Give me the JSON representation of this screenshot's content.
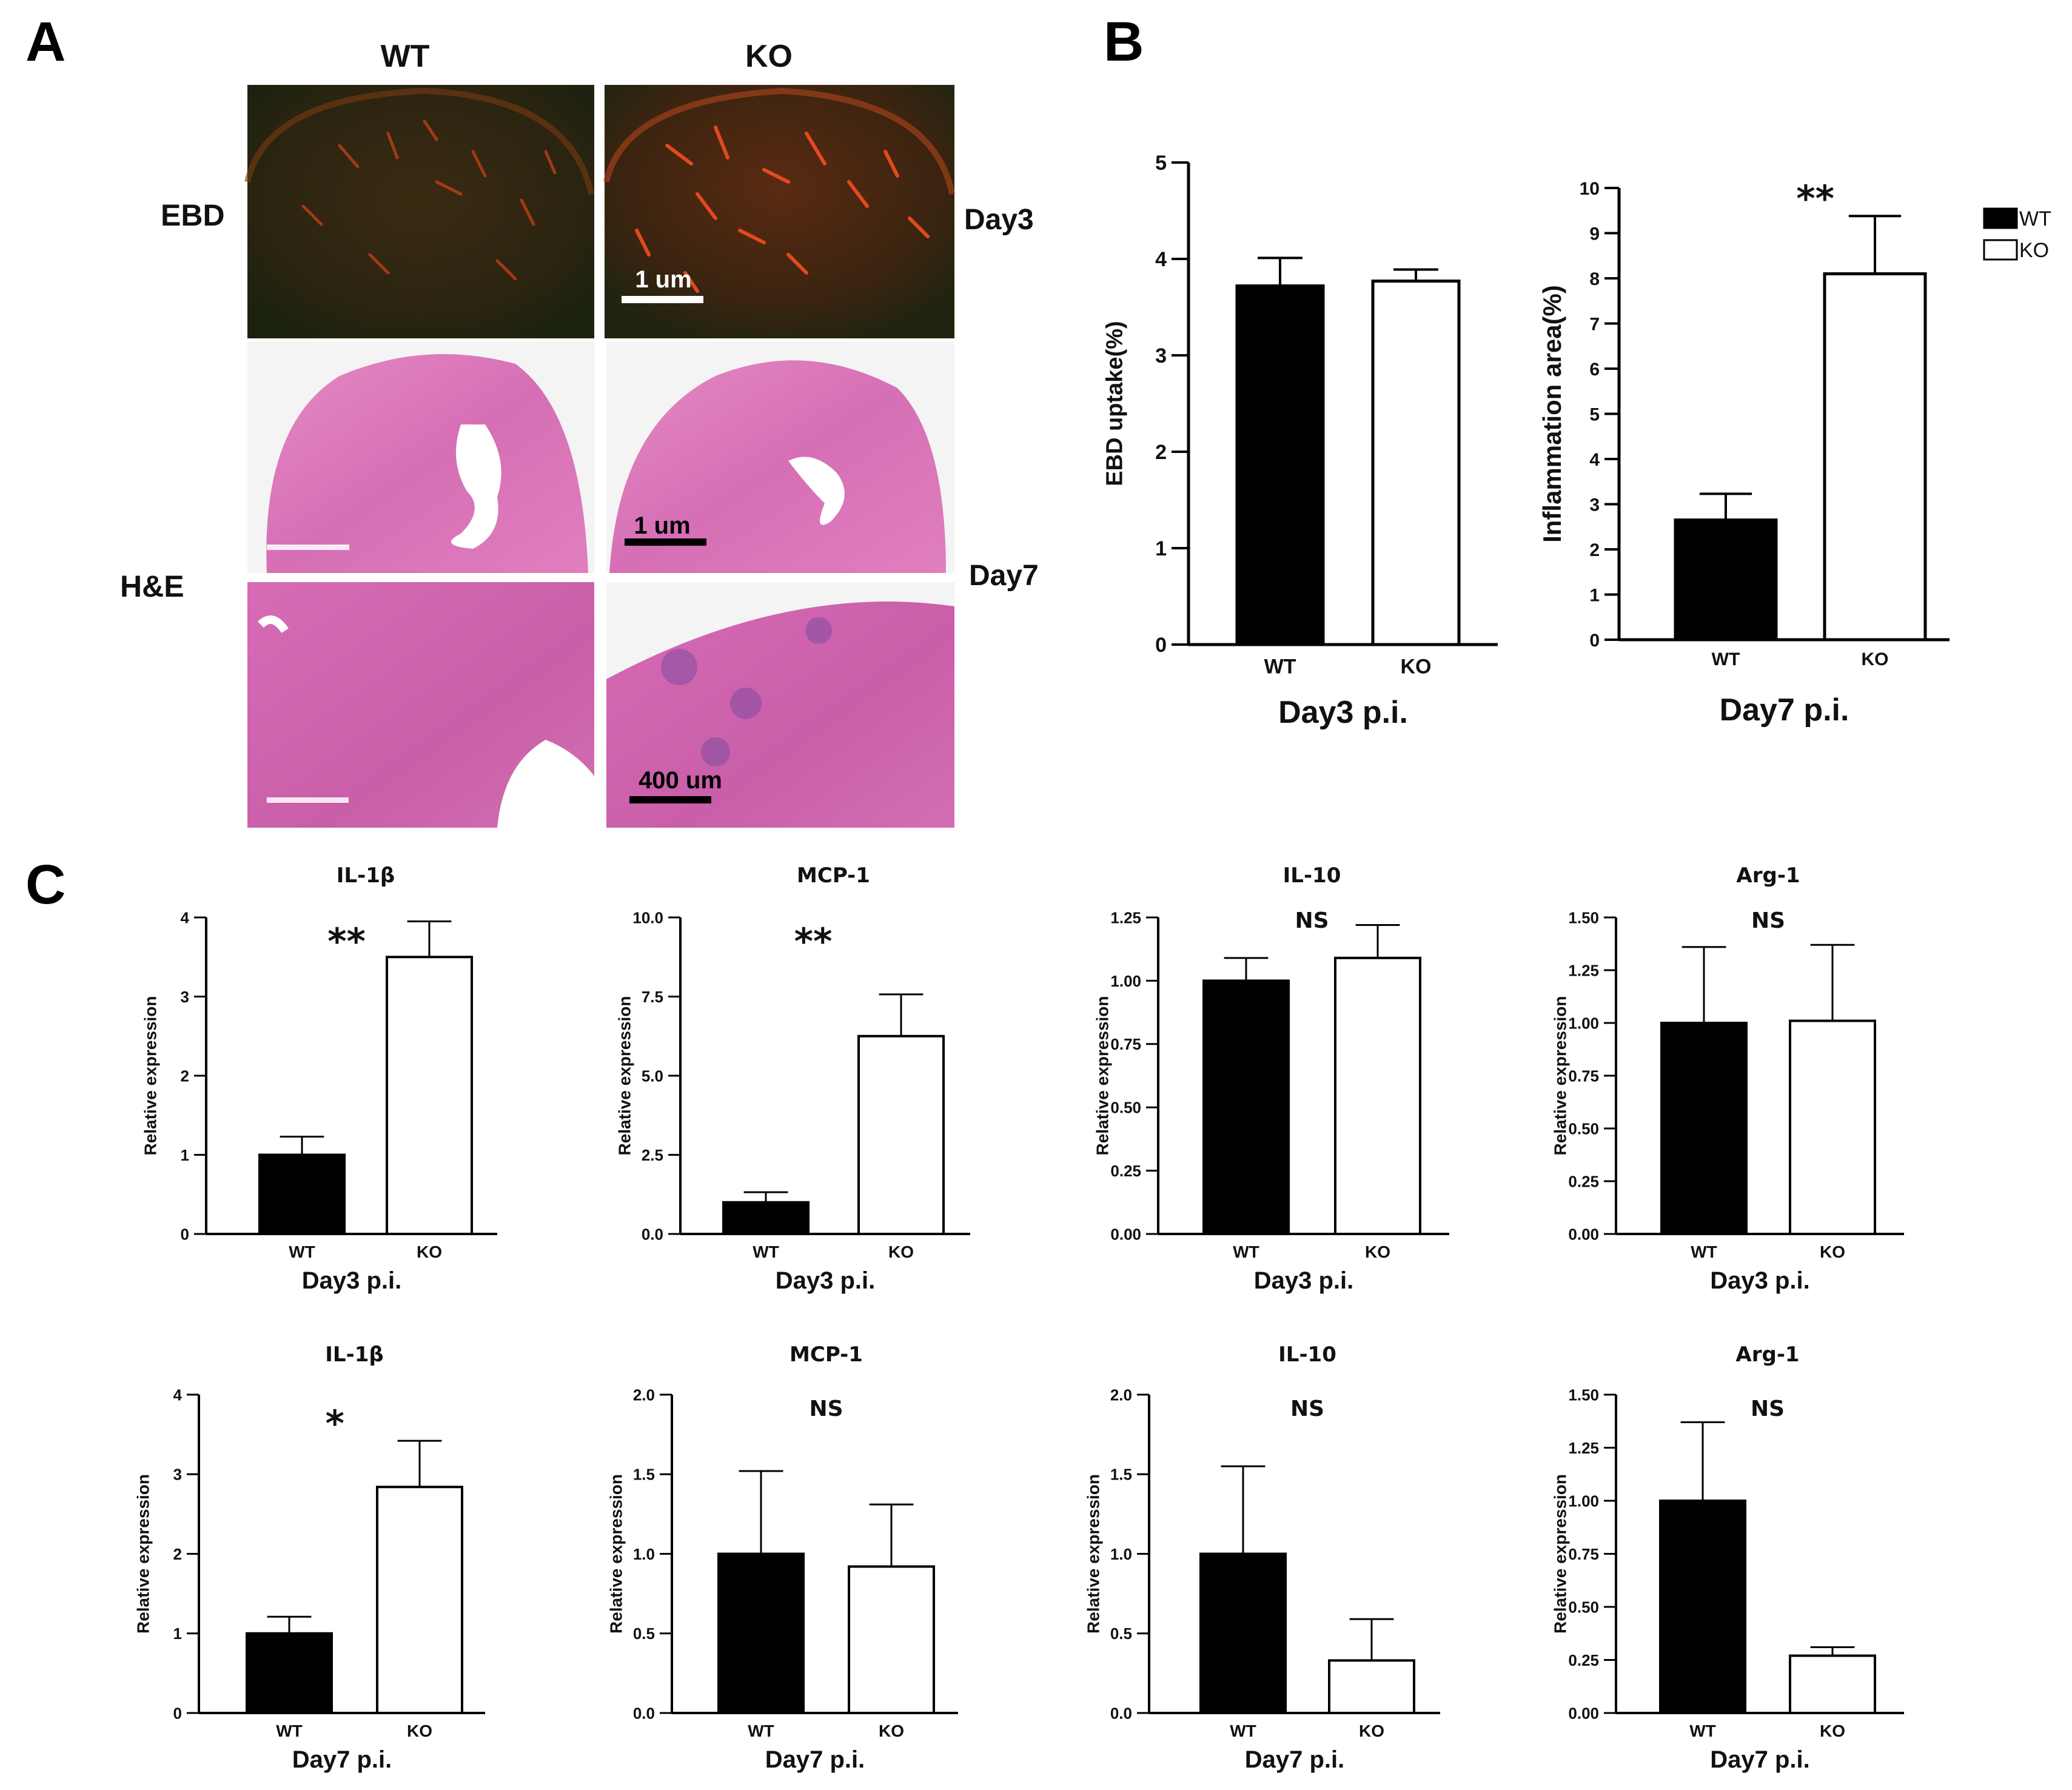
{
  "panels": {
    "a": "A",
    "b": "B",
    "c": "C"
  },
  "panel_a": {
    "col_wt": "WT",
    "col_ko": "KO",
    "row_ebd": "EBD",
    "row_he": "H&E",
    "day3": "Day3",
    "day7": "Day7",
    "scalebar_ebd": "1 um",
    "scalebar_he1": "1 um",
    "scalebar_he2": "400 um"
  },
  "legend": {
    "wt": "WT",
    "ko": "KO",
    "wt_color": "#000000",
    "ko_color": "#ffffff"
  },
  "colors": {
    "wt": "#000000",
    "ko": "#ffffff",
    "stroke": "#000000"
  },
  "chart_data": [
    {
      "id": "b1",
      "type": "bar",
      "title": "",
      "xlabel": "Day3 p.i.",
      "ylabel": "EBD uptake(%)",
      "categories": [
        "WT",
        "KO"
      ],
      "values": [
        3.72,
        3.77
      ],
      "errors": [
        0.29,
        0.12
      ],
      "ylim": [
        0,
        5
      ],
      "ticks": [
        "0",
        "1",
        "2",
        "3",
        "4",
        "5"
      ],
      "sig": ""
    },
    {
      "id": "b2",
      "type": "bar",
      "title": "",
      "xlabel": "Day7 p.i.",
      "ylabel": "Inflammation area(%)",
      "categories": [
        "WT",
        "KO"
      ],
      "values": [
        2.65,
        8.1
      ],
      "errors": [
        0.58,
        1.28
      ],
      "ylim": [
        0,
        10
      ],
      "ticks": [
        "0",
        "1",
        "2",
        "3",
        "4",
        "5",
        "6",
        "7",
        "8",
        "9",
        "10"
      ],
      "sig": "**"
    },
    {
      "id": "c1",
      "type": "bar",
      "title": "IL-1β",
      "xlabel": "Day3 p.i.",
      "ylabel": "Relative expression",
      "categories": [
        "WT",
        "KO"
      ],
      "values": [
        1.0,
        3.5
      ],
      "errors": [
        0.23,
        0.45
      ],
      "ylim": [
        0,
        4
      ],
      "ticks": [
        "0",
        "1",
        "2",
        "3",
        "4"
      ],
      "sig": "**"
    },
    {
      "id": "c2",
      "type": "bar",
      "title": "MCP-1",
      "xlabel": "Day3 p.i.",
      "ylabel": "Relative expression",
      "categories": [
        "WT",
        "KO"
      ],
      "values": [
        1.0,
        6.25
      ],
      "errors": [
        0.32,
        1.32
      ],
      "ylim": [
        0,
        10
      ],
      "ticks": [
        "0.0",
        "2.5",
        "5.0",
        "7.5",
        "10.0"
      ],
      "sig": "**"
    },
    {
      "id": "c3",
      "type": "bar",
      "title": "IL-10",
      "xlabel": "Day3 p.i.",
      "ylabel": "Relative expression",
      "categories": [
        "WT",
        "KO"
      ],
      "values": [
        1.0,
        1.09
      ],
      "errors": [
        0.09,
        0.13
      ],
      "ylim": [
        0,
        1.25
      ],
      "ticks": [
        "0.00",
        "0.25",
        "0.50",
        "0.75",
        "1.00",
        "1.25"
      ],
      "sig": "NS"
    },
    {
      "id": "c4",
      "type": "bar",
      "title": "Arg-1",
      "xlabel": "Day3 p.i.",
      "ylabel": "Relative expression",
      "categories": [
        "WT",
        "KO"
      ],
      "values": [
        1.0,
        1.01
      ],
      "errors": [
        0.36,
        0.36
      ],
      "ylim": [
        0,
        1.5
      ],
      "ticks": [
        "0.00",
        "0.25",
        "0.50",
        "0.75",
        "1.00",
        "1.25",
        "1.50"
      ],
      "sig": "NS"
    },
    {
      "id": "c5",
      "type": "bar",
      "title": "IL-1β",
      "xlabel": "Day7 p.i.",
      "ylabel": "Relative expression",
      "categories": [
        "WT",
        "KO"
      ],
      "values": [
        1.0,
        2.84
      ],
      "errors": [
        0.21,
        0.58
      ],
      "ylim": [
        0,
        4
      ],
      "ticks": [
        "0",
        "1",
        "2",
        "3",
        "4"
      ],
      "sig": "*"
    },
    {
      "id": "c6",
      "type": "bar",
      "title": "MCP-1",
      "xlabel": "Day7 p.i.",
      "ylabel": "Relative expression",
      "categories": [
        "WT",
        "KO"
      ],
      "values": [
        1.0,
        0.92
      ],
      "errors": [
        0.52,
        0.39
      ],
      "ylim": [
        0,
        2
      ],
      "ticks": [
        "0.0",
        "0.5",
        "1.0",
        "1.5",
        "2.0"
      ],
      "sig": "NS"
    },
    {
      "id": "c7",
      "type": "bar",
      "title": "IL-10",
      "xlabel": "Day7 p.i.",
      "ylabel": "Relative expression",
      "categories": [
        "WT",
        "KO"
      ],
      "values": [
        1.0,
        0.33
      ],
      "errors": [
        0.55,
        0.26
      ],
      "ylim": [
        0,
        2
      ],
      "ticks": [
        "0.0",
        "0.5",
        "1.0",
        "1.5",
        "2.0"
      ],
      "sig": "NS"
    },
    {
      "id": "c8",
      "type": "bar",
      "title": "Arg-1",
      "xlabel": "Day7 p.i.",
      "ylabel": "Relative expression",
      "categories": [
        "WT",
        "KO"
      ],
      "values": [
        1.0,
        0.27
      ],
      "errors": [
        0.37,
        0.04
      ],
      "ylim": [
        0,
        1.5
      ],
      "ticks": [
        "0.00",
        "0.25",
        "0.50",
        "0.75",
        "1.00",
        "1.25",
        "1.50"
      ],
      "sig": "NS"
    }
  ]
}
